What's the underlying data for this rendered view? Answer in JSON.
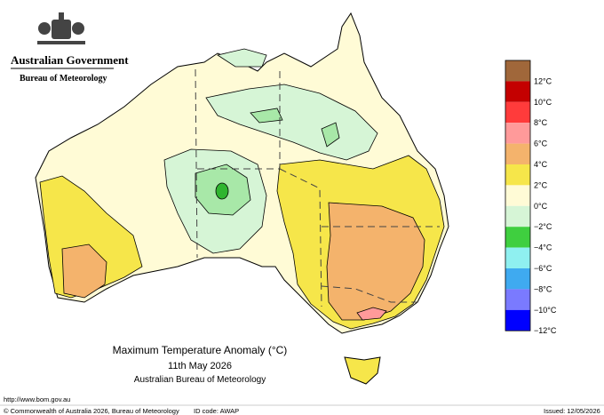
{
  "header": {
    "government": "Australian Government",
    "agency": "Bureau of Meteorology"
  },
  "map": {
    "title": "Maximum Temperature Anomaly (°C)",
    "date": "11th May 2026",
    "source": "Australian Bureau of Meteorology"
  },
  "legend": {
    "colors": [
      "#a0673a",
      "#c40000",
      "#ff3b3b",
      "#ff9a9a",
      "#f4b36c",
      "#f6e64a",
      "#fffbd6",
      "#d6f5d6",
      "#3fcf3f",
      "#8ff0f0",
      "#3faaf0",
      "#7a7aff",
      "#0000ff"
    ],
    "labels": [
      "12°C",
      "10°C",
      "8°C",
      "6°C",
      "4°C",
      "2°C",
      "0°C",
      "−2°C",
      "−4°C",
      "−6°C",
      "−8°C",
      "−10°C",
      "−12°C"
    ]
  },
  "footer": {
    "url": "http://www.bom.gov.au",
    "copyright": "© Commonwealth of Australia 2026, Bureau of Meteorology",
    "id_code": "ID code: AWAP",
    "issued": "Issued: 12/05/2026"
  }
}
